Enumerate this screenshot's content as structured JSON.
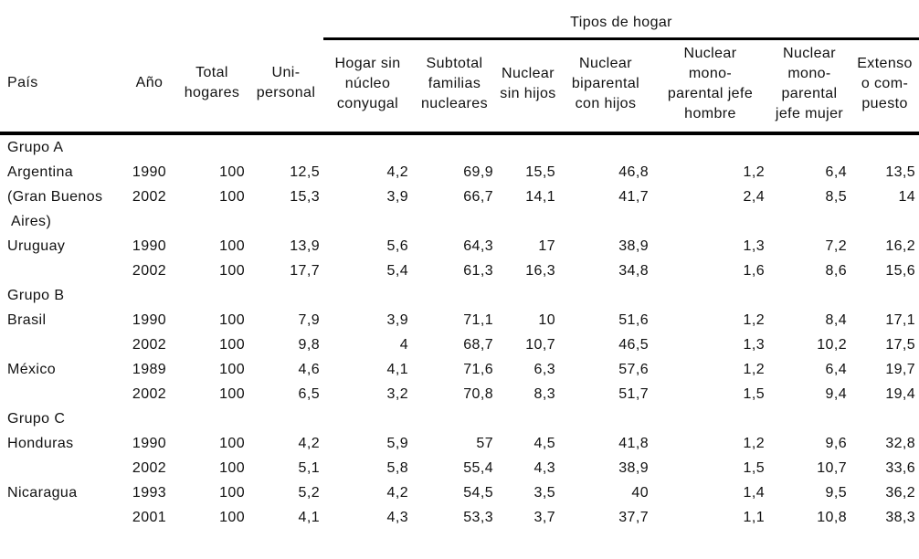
{
  "table": {
    "group_header": "Tipos de hogar",
    "columns": [
      {
        "key": "pais",
        "label": "País"
      },
      {
        "key": "ano",
        "label": "Año"
      },
      {
        "key": "total_hogares",
        "label": "Total\nhogares"
      },
      {
        "key": "unipersonal",
        "label": "Uni-\npersonal"
      },
      {
        "key": "hogar_sin_nucleo_conyugal",
        "label": "Hogar sin\nnúcleo\nconyugal"
      },
      {
        "key": "subtotal_familias_nucleares",
        "label": "Subtotal\nfamilias\nnucleares"
      },
      {
        "key": "nuclear_sin_hijos",
        "label": "Nuclear\nsin hijos"
      },
      {
        "key": "nuclear_biparental_con_hijos",
        "label": "Nuclear\nbiparental\ncon hijos"
      },
      {
        "key": "nuclear_monoparental_jefe_hombre",
        "label": "Nuclear\nmono-\nparental jefe\nhombre"
      },
      {
        "key": "nuclear_monoparental_jefe_mujer",
        "label": "Nuclear\nmono-\nparental\njefe mujer"
      },
      {
        "key": "extenso_o_compuesto",
        "label": "Extenso\no com-\npuesto"
      }
    ],
    "rows": [
      {
        "type": "group",
        "label": "Grupo A"
      },
      {
        "type": "data",
        "country": "Argentina",
        "year": "1990",
        "values": [
          "100",
          "12,5",
          "4,2",
          "69,9",
          "15,5",
          "46,8",
          "1,2",
          "6,4",
          "13,5"
        ]
      },
      {
        "type": "data",
        "country": "(Gran Buenos",
        "year": "2002",
        "values": [
          "100",
          "15,3",
          "3,9",
          "66,7",
          "14,1",
          "41,7",
          "2,4",
          "8,5",
          "14"
        ]
      },
      {
        "type": "data",
        "country": "Aires)",
        "indent": true,
        "year": "",
        "values": [
          "",
          "",
          "",
          "",
          "",
          "",
          "",
          "",
          ""
        ]
      },
      {
        "type": "data",
        "country": "Uruguay",
        "year": "1990",
        "values": [
          "100",
          "13,9",
          "5,6",
          "64,3",
          "17",
          "38,9",
          "1,3",
          "7,2",
          "16,2"
        ]
      },
      {
        "type": "data",
        "country": "",
        "year": "2002",
        "values": [
          "100",
          "17,7",
          "5,4",
          "61,3",
          "16,3",
          "34,8",
          "1,6",
          "8,6",
          "15,6"
        ]
      },
      {
        "type": "group",
        "label": "Grupo B"
      },
      {
        "type": "data",
        "country": "Brasil",
        "year": "1990",
        "values": [
          "100",
          "7,9",
          "3,9",
          "71,1",
          "10",
          "51,6",
          "1,2",
          "8,4",
          "17,1"
        ]
      },
      {
        "type": "data",
        "country": "",
        "year": "2002",
        "values": [
          "100",
          "9,8",
          "4",
          "68,7",
          "10,7",
          "46,5",
          "1,3",
          "10,2",
          "17,5"
        ]
      },
      {
        "type": "data",
        "country": "México",
        "year": "1989",
        "values": [
          "100",
          "4,6",
          "4,1",
          "71,6",
          "6,3",
          "57,6",
          "1,2",
          "6,4",
          "19,7"
        ]
      },
      {
        "type": "data",
        "country": "",
        "year": "2002",
        "values": [
          "100",
          "6,5",
          "3,2",
          "70,8",
          "8,3",
          "51,7",
          "1,5",
          "9,4",
          "19,4"
        ]
      },
      {
        "type": "group",
        "label": "Grupo C"
      },
      {
        "type": "data",
        "country": "Honduras",
        "year": "1990",
        "values": [
          "100",
          "4,2",
          "5,9",
          "57",
          "4,5",
          "41,8",
          "1,2",
          "9,6",
          "32,8"
        ]
      },
      {
        "type": "data",
        "country": "",
        "year": "2002",
        "values": [
          "100",
          "5,1",
          "5,8",
          "55,4",
          "4,3",
          "38,9",
          "1,5",
          "10,7",
          "33,6"
        ]
      },
      {
        "type": "data",
        "country": "Nicaragua",
        "year": "1993",
        "values": [
          "100",
          "5,2",
          "4,2",
          "54,5",
          "3,5",
          "40",
          "1,4",
          "9,5",
          "36,2"
        ]
      },
      {
        "type": "data",
        "country": "",
        "year": "2001",
        "values": [
          "100",
          "4,1",
          "4,3",
          "53,3",
          "3,7",
          "37,7",
          "1,1",
          "10,8",
          "38,3"
        ]
      }
    ]
  }
}
